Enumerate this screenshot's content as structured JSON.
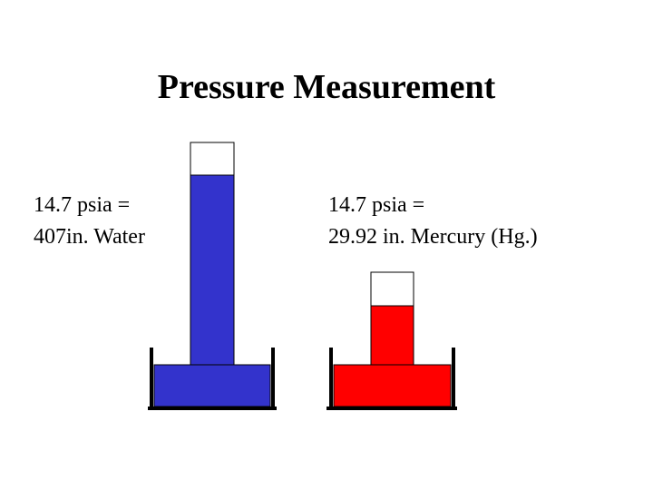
{
  "title": "Pressure Measurement",
  "panels": [
    {
      "lines": [
        "14.7 psia =",
        "407in. Water"
      ]
    },
    {
      "lines": [
        "14.7 psia =",
        "29.92 in. Mercury (Hg.)"
      ]
    }
  ]
}
